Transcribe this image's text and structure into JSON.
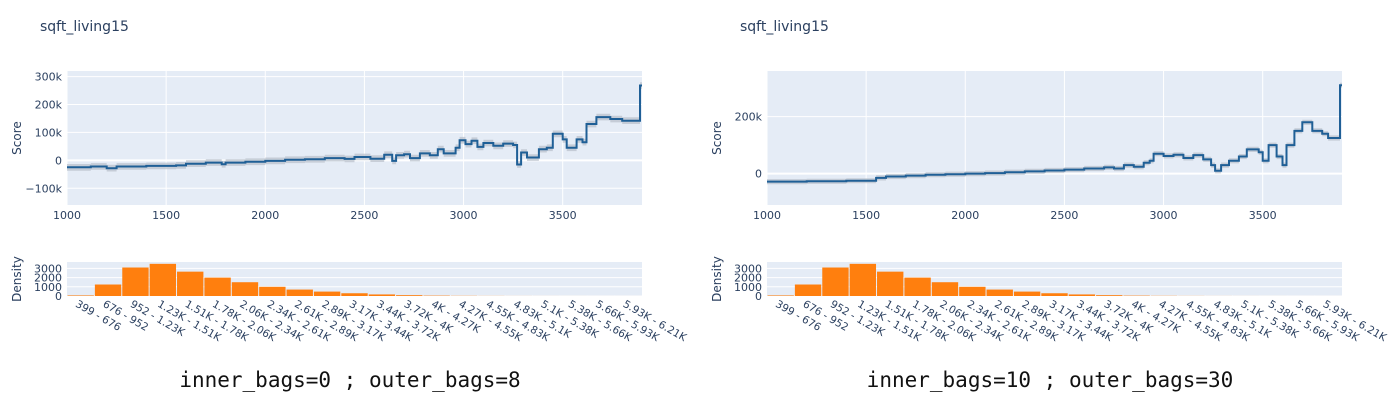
{
  "colors": {
    "plot_bg": "#e5ecf6",
    "grid": "#ffffff",
    "line": "#1f5f96",
    "band": "#b9c2cc",
    "bar": "#ff7f0e",
    "text": "#2a3f5f"
  },
  "chart_data": [
    {
      "type": "line",
      "title": "sqft_living15",
      "ylabel": "Score",
      "xlim": [
        1000,
        3900
      ],
      "ylim": [
        -160000,
        320000
      ],
      "xticks": [
        1000,
        1500,
        2000,
        2500,
        3000,
        3500
      ],
      "xtick_labels": [
        "1000",
        "1500",
        "2000",
        "2500",
        "3000",
        "3500"
      ],
      "yticks": [
        -100000,
        0,
        100000,
        200000,
        300000
      ],
      "ytick_labels": [
        "−100k",
        "0",
        "100k",
        "200k",
        "300k"
      ],
      "band_width": 12000,
      "steps": [
        [
          1000,
          -25000
        ],
        [
          1120,
          -22000
        ],
        [
          1200,
          -28000
        ],
        [
          1250,
          -22000
        ],
        [
          1400,
          -20000
        ],
        [
          1550,
          -18000
        ],
        [
          1600,
          -12000
        ],
        [
          1700,
          -8000
        ],
        [
          1780,
          -14000
        ],
        [
          1800,
          -8000
        ],
        [
          1900,
          -5000
        ],
        [
          2000,
          -2000
        ],
        [
          2100,
          2000
        ],
        [
          2200,
          4000
        ],
        [
          2300,
          8000
        ],
        [
          2400,
          5000
        ],
        [
          2450,
          12000
        ],
        [
          2530,
          6000
        ],
        [
          2600,
          20000
        ],
        [
          2640,
          -2000
        ],
        [
          2660,
          18000
        ],
        [
          2700,
          22000
        ],
        [
          2730,
          8000
        ],
        [
          2780,
          25000
        ],
        [
          2830,
          18000
        ],
        [
          2870,
          40000
        ],
        [
          2900,
          25000
        ],
        [
          2960,
          45000
        ],
        [
          2980,
          72000
        ],
        [
          3010,
          58000
        ],
        [
          3040,
          70000
        ],
        [
          3070,
          48000
        ],
        [
          3100,
          62000
        ],
        [
          3150,
          52000
        ],
        [
          3200,
          60000
        ],
        [
          3250,
          55000
        ],
        [
          3270,
          -15000
        ],
        [
          3290,
          28000
        ],
        [
          3320,
          10000
        ],
        [
          3380,
          40000
        ],
        [
          3420,
          45000
        ],
        [
          3450,
          95000
        ],
        [
          3500,
          75000
        ],
        [
          3520,
          45000
        ],
        [
          3570,
          75000
        ],
        [
          3600,
          65000
        ],
        [
          3620,
          130000
        ],
        [
          3670,
          155000
        ],
        [
          3740,
          148000
        ],
        [
          3800,
          142000
        ],
        [
          3890,
          268000
        ],
        [
          3900,
          268000
        ]
      ],
      "density": {
        "ylabel": "Density",
        "yticks": [
          0,
          1000,
          2000,
          3000
        ],
        "ytick_labels": [
          "0",
          "1000",
          "2000",
          "3000"
        ],
        "ymax": 3700,
        "bins": [
          "399 - 676",
          "676 - 952",
          "952 - 1.23K",
          "1.23K - 1.51K",
          "1.51K - 1.78K",
          "1.78K - 2.06K",
          "2.06K - 2.34K",
          "2.34K - 2.61K",
          "2.61K - 2.89K",
          "2.89K - 3.17K",
          "3.17K - 3.44K",
          "3.44K - 3.72K",
          "3.72K - 4K",
          "4K - 4.27K",
          "4.27K - 4.55K",
          "4.55K - 4.83K",
          "4.83K - 5.1K",
          "5.1K - 5.38K",
          "5.38K - 5.66K",
          "5.66K - 5.93K",
          "5.93K - 6.21K"
        ],
        "values": [
          60,
          1250,
          3100,
          3500,
          2650,
          2000,
          1500,
          1000,
          700,
          480,
          300,
          170,
          90,
          40,
          20,
          10,
          5,
          3,
          2,
          1,
          1
        ]
      },
      "caption": "inner_bags=0 ; outer_bags=8"
    },
    {
      "type": "line",
      "title": "sqft_living15",
      "ylabel": "Score",
      "xlim": [
        1000,
        3900
      ],
      "ylim": [
        -110000,
        360000
      ],
      "xticks": [
        1000,
        1500,
        2000,
        2500,
        3000,
        3500
      ],
      "xtick_labels": [
        "1000",
        "1500",
        "2000",
        "2500",
        "3000",
        "3500"
      ],
      "yticks": [
        0,
        200000
      ],
      "ytick_labels": [
        "0",
        "200k"
      ],
      "band_width": 9000,
      "steps": [
        [
          1000,
          -28000
        ],
        [
          1200,
          -27000
        ],
        [
          1400,
          -25000
        ],
        [
          1550,
          -15000
        ],
        [
          1600,
          -10000
        ],
        [
          1700,
          -7000
        ],
        [
          1800,
          -4000
        ],
        [
          1900,
          -2000
        ],
        [
          2000,
          0
        ],
        [
          2100,
          2000
        ],
        [
          2200,
          5000
        ],
        [
          2300,
          8000
        ],
        [
          2400,
          11000
        ],
        [
          2500,
          14000
        ],
        [
          2600,
          18000
        ],
        [
          2700,
          22000
        ],
        [
          2750,
          18000
        ],
        [
          2800,
          30000
        ],
        [
          2850,
          24000
        ],
        [
          2900,
          38000
        ],
        [
          2930,
          45000
        ],
        [
          2950,
          70000
        ],
        [
          3000,
          62000
        ],
        [
          3050,
          66000
        ],
        [
          3100,
          55000
        ],
        [
          3150,
          65000
        ],
        [
          3200,
          50000
        ],
        [
          3240,
          30000
        ],
        [
          3260,
          10000
        ],
        [
          3290,
          30000
        ],
        [
          3330,
          45000
        ],
        [
          3380,
          60000
        ],
        [
          3420,
          85000
        ],
        [
          3480,
          75000
        ],
        [
          3500,
          45000
        ],
        [
          3530,
          100000
        ],
        [
          3570,
          60000
        ],
        [
          3600,
          30000
        ],
        [
          3620,
          100000
        ],
        [
          3660,
          150000
        ],
        [
          3700,
          180000
        ],
        [
          3750,
          150000
        ],
        [
          3800,
          140000
        ],
        [
          3830,
          125000
        ],
        [
          3890,
          310000
        ],
        [
          3900,
          310000
        ]
      ],
      "density": {
        "ylabel": "Density",
        "yticks": [
          0,
          1000,
          2000,
          3000
        ],
        "ytick_labels": [
          "0",
          "1000",
          "2000",
          "3000"
        ],
        "ymax": 3700,
        "bins": [
          "399 - 676",
          "676 - 952",
          "952 - 1.23K",
          "1.23K - 1.51K",
          "1.51K - 1.78K",
          "1.78K - 2.06K",
          "2.06K - 2.34K",
          "2.34K - 2.61K",
          "2.61K - 2.89K",
          "2.89K - 3.17K",
          "3.17K - 3.44K",
          "3.44K - 3.72K",
          "3.72K - 4K",
          "4K - 4.27K",
          "4.27K - 4.55K",
          "4.55K - 4.83K",
          "4.83K - 5.1K",
          "5.1K - 5.38K",
          "5.38K - 5.66K",
          "5.66K - 5.93K",
          "5.93K - 6.21K"
        ],
        "values": [
          60,
          1250,
          3100,
          3500,
          2650,
          2000,
          1500,
          1000,
          700,
          480,
          300,
          170,
          90,
          40,
          20,
          10,
          5,
          3,
          2,
          1,
          1
        ]
      },
      "caption": "inner_bags=10 ; outer_bags=30"
    }
  ]
}
